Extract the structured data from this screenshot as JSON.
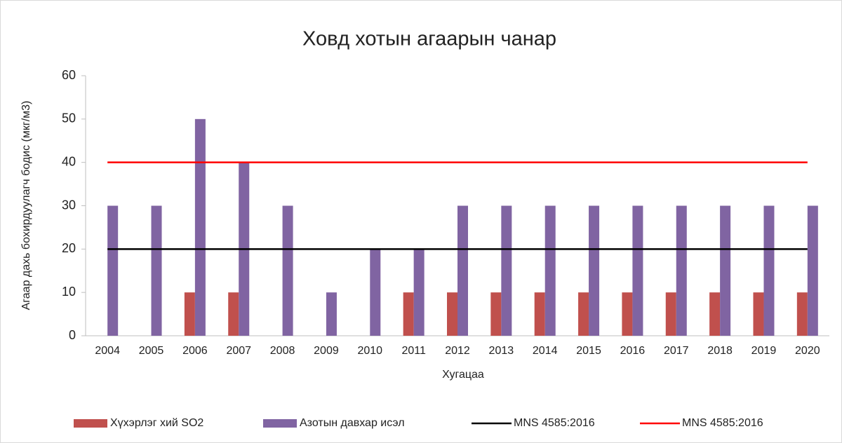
{
  "chart_data": {
    "type": "bar",
    "title": "Ховд хотын агаарын чанар",
    "x_label": "Хугацаа",
    "y_label": "Агаар дахь бохирдуулагч бодис (мкг/м3)",
    "categories": [
      "2004",
      "2005",
      "2006",
      "2007",
      "2008",
      "2009",
      "2010",
      "2011",
      "2012",
      "2013",
      "2014",
      "2015",
      "2016",
      "2017",
      "2018",
      "2019",
      "2020"
    ],
    "series": [
      {
        "name": "Хүхэрлэг хий SO2",
        "type": "bar",
        "color": "#c0504d",
        "values": [
          0,
          0,
          10,
          10,
          0,
          0,
          0,
          10,
          10,
          10,
          10,
          10,
          10,
          10,
          10,
          10,
          10
        ]
      },
      {
        "name": "Азотын давхар исэл",
        "type": "bar",
        "color": "#8064a2",
        "values": [
          30,
          30,
          50,
          40,
          30,
          10,
          20,
          20,
          30,
          30,
          30,
          30,
          30,
          30,
          30,
          30,
          30
        ]
      },
      {
        "name": "MNS 4585:2016",
        "type": "line",
        "color": "#000000",
        "values": [
          20,
          20,
          20,
          20,
          20,
          20,
          20,
          20,
          20,
          20,
          20,
          20,
          20,
          20,
          20,
          20,
          20
        ]
      },
      {
        "name": "MNS 4585:2016",
        "type": "line",
        "color": "#ff0000",
        "values": [
          40,
          40,
          40,
          40,
          40,
          40,
          40,
          40,
          40,
          40,
          40,
          40,
          40,
          40,
          40,
          40,
          40
        ]
      }
    ],
    "ylim": [
      0,
      60
    ],
    "yticks": [
      0,
      10,
      20,
      30,
      40,
      50,
      60
    ],
    "legend": "bottom"
  }
}
